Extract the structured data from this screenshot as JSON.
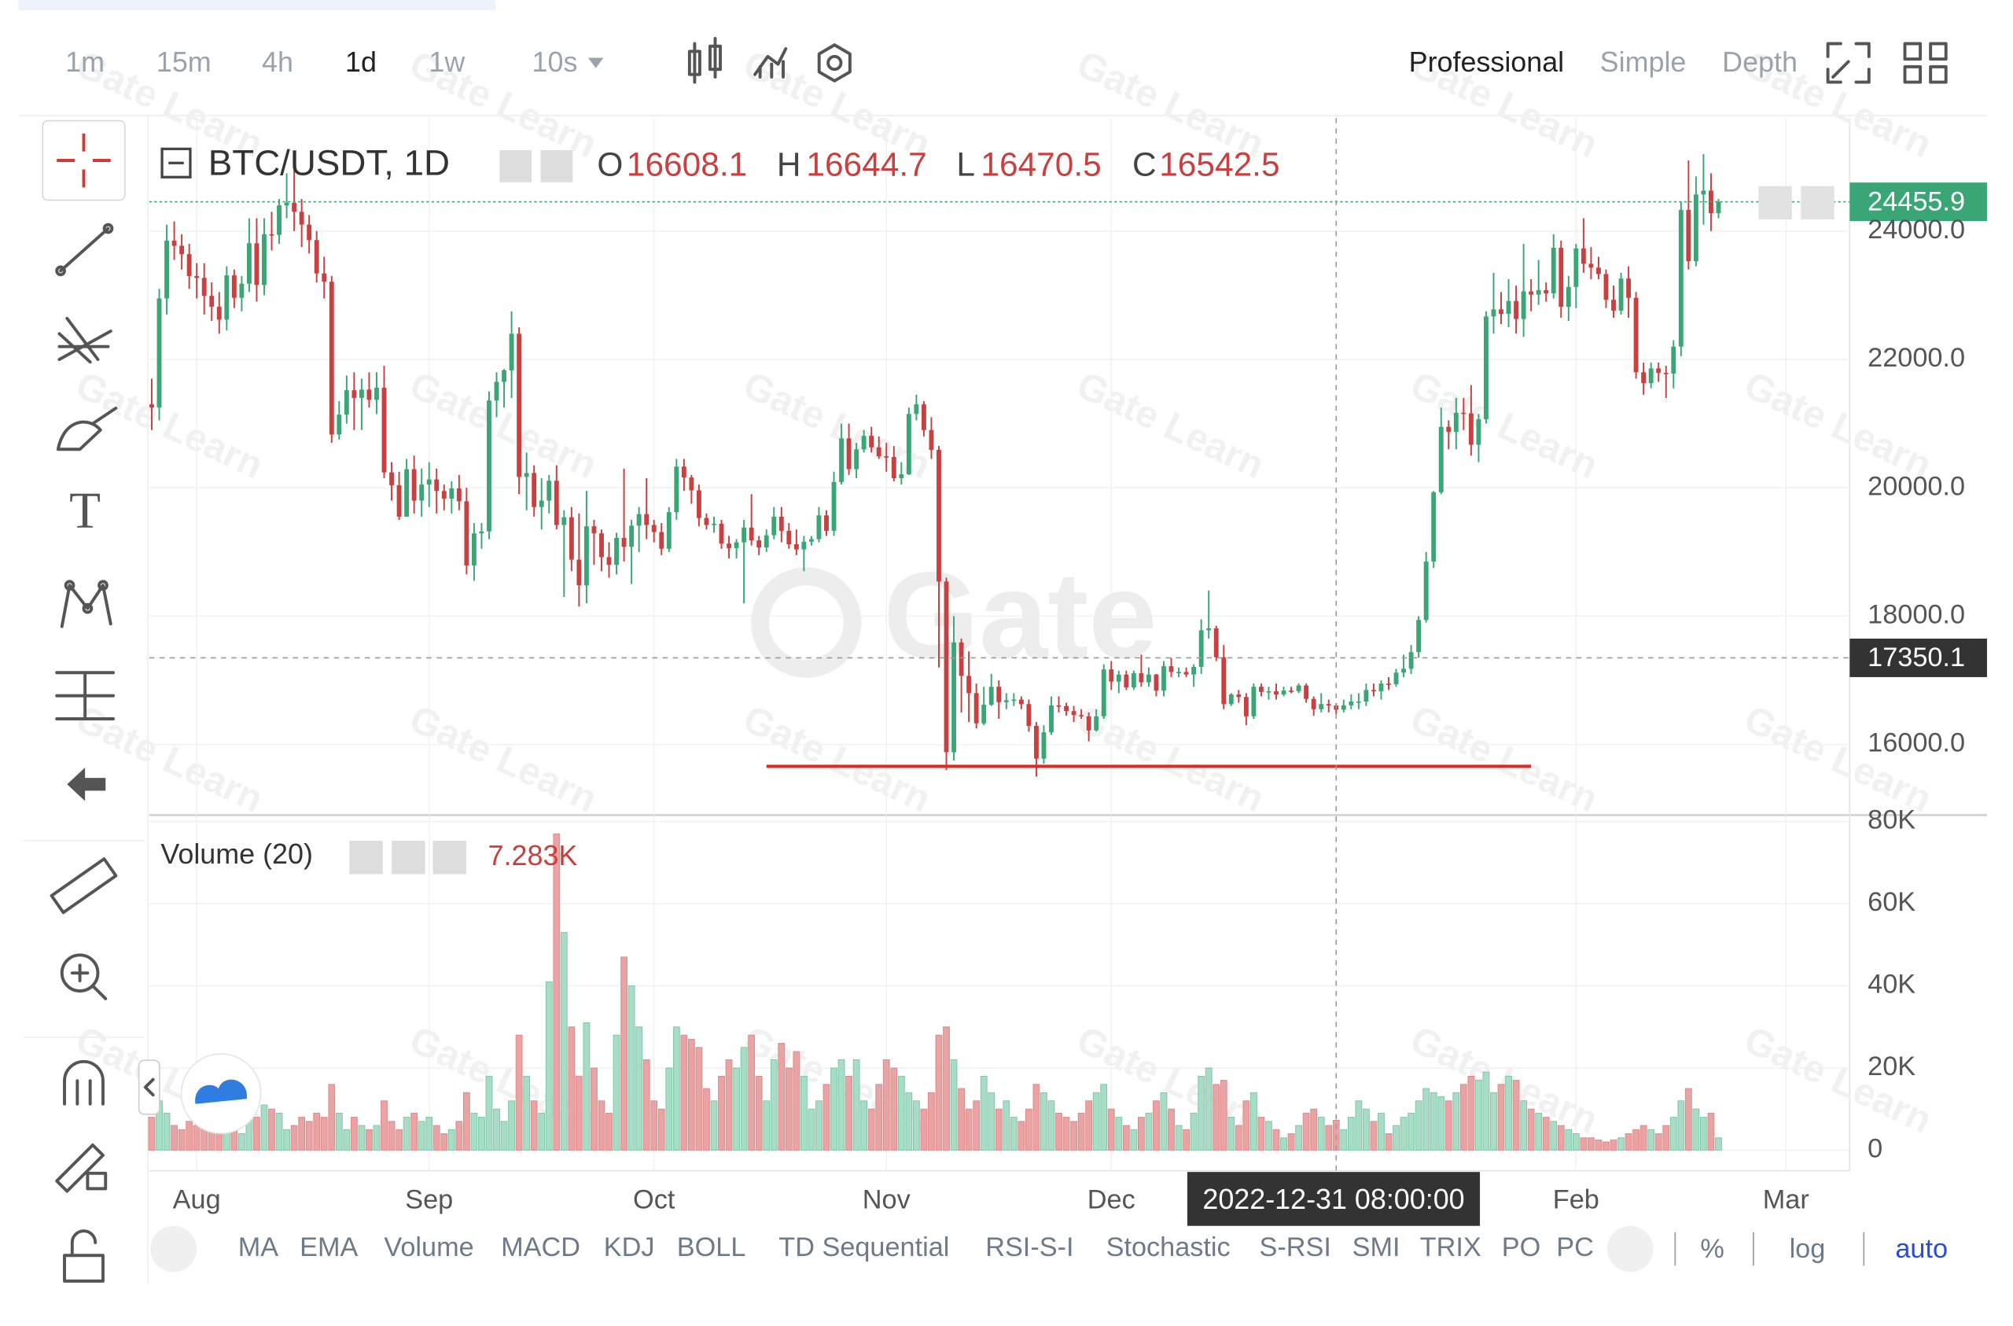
{
  "toolbar": {
    "intervals": [
      "1m",
      "15m",
      "4h",
      "1d",
      "1w",
      "10s"
    ],
    "views": [
      "Professional",
      "Simple",
      "Depth"
    ]
  },
  "indicators": [
    "MA",
    "EMA",
    "Volume",
    "MACD",
    "KDJ",
    "BOLL",
    "TD Sequential",
    "RSI-S-I",
    "Stochastic",
    "S-RSI",
    "SMI",
    "TRIX",
    "PO",
    "PC"
  ],
  "scale_options": [
    "%",
    "log",
    "auto"
  ],
  "watermark": {
    "logo": "Gate",
    "tile": "Gate Learn"
  },
  "chart_data": [
    {
      "type": "candlestick",
      "title": "BTC/USDT, 1D",
      "legend_labels": [
        "O",
        "H",
        "L",
        "C"
      ],
      "colors": {
        "up": "#3aa676",
        "down": "#c8403f"
      },
      "grid": true,
      "xlim": [
        -0.34,
        226.5
      ],
      "xticks": [
        {
          "value": 6,
          "label": "Aug"
        },
        {
          "value": 37,
          "label": "Sep"
        },
        {
          "value": 67,
          "label": "Oct"
        },
        {
          "value": 98,
          "label": "Nov"
        },
        {
          "value": 128,
          "label": "Dec"
        },
        {
          "value": 190,
          "label": "Feb"
        },
        {
          "value": 218,
          "label": "Mar"
        }
      ],
      "ylim": [
        14900,
        25760
      ],
      "yticks": [
        {
          "value": 16000,
          "label": "16000.0"
        },
        {
          "value": 18000,
          "label": "18000.0"
        },
        {
          "value": 20000,
          "label": "20000.0"
        },
        {
          "value": 22000,
          "label": "22000.0"
        },
        {
          "value": 24000,
          "label": "24000.0"
        }
      ],
      "crosshair": {
        "x": 158,
        "y": 17350.1,
        "x_label": "2022-12-31 08:00:00"
      },
      "support_line": {
        "value": 15660,
        "x": [
          82,
          184
        ],
        "color": "#e0291f"
      },
      "open": [
        21300,
        21250,
        22950,
        23850,
        23770,
        23640,
        23300,
        23270,
        22990,
        22820,
        22620,
        23310,
        22960,
        23180,
        23810,
        23160,
        23950,
        23940,
        24400,
        24440,
        24300,
        24100,
        23860,
        23340,
        23210,
        20830,
        21140,
        21520,
        21400,
        21530,
        21370,
        21560,
        20240,
        20040,
        19550,
        20290,
        19800,
        20050,
        20130,
        19950,
        19830,
        19990,
        19790,
        18790,
        19290,
        19320,
        21360,
        21650,
        21830,
        22400,
        20170,
        20230,
        19700,
        19800,
        20110,
        19420,
        19540,
        18880,
        18480,
        19400,
        19290,
        18920,
        18800,
        19220,
        19080,
        19410,
        19590,
        19420,
        19310,
        19050,
        19620,
        20330,
        20160,
        19960,
        19530,
        19420,
        19440,
        19130,
        19060,
        19150,
        19380,
        19180,
        19070,
        19260,
        19550,
        19330,
        19120,
        19040,
        19160,
        19200,
        19570,
        19330,
        20090,
        20770,
        20290,
        20600,
        20810,
        20630,
        20490,
        20480,
        20150,
        20210,
        21150,
        21300,
        20900,
        20590,
        18540,
        15880,
        17590,
        17070,
        16800,
        16330,
        16620,
        16900,
        16660,
        16690,
        16700,
        16630,
        16290,
        15780,
        16190,
        16610,
        16600,
        16520,
        16460,
        16440,
        16220,
        16440,
        17170,
        16980,
        17090,
        16890,
        17110,
        16970,
        17090,
        16840,
        17220,
        17130,
        17130,
        17090,
        17210,
        17780,
        17810,
        17360,
        16630,
        16780,
        16740,
        16440,
        16900,
        16820,
        16830,
        16780,
        16840,
        16830,
        16920,
        16710,
        16550,
        16630,
        16608.1,
        16542.5,
        16610,
        16670,
        16670,
        16850,
        16830,
        16950,
        16940,
        17120,
        17180,
        17440,
        17940,
        18850,
        19930,
        20950,
        20870,
        21170,
        21160,
        20670,
        21070,
        22670,
        22780,
        22710,
        22910,
        22630,
        23060,
        23010,
        23080,
        23030,
        23740,
        22820,
        23130,
        23730,
        23490,
        23430,
        23330,
        22930,
        22760,
        23260,
        22960,
        21800,
        21630,
        21860,
        21790,
        21780,
        22200,
        24330,
        23530,
        24570,
        24630,
        24280
      ],
      "high": [
        21700,
        23100,
        24100,
        24150,
        23950,
        23800,
        23500,
        23500,
        23200,
        23050,
        23450,
        23400,
        23300,
        24200,
        24200,
        24200,
        24300,
        24500,
        24900,
        25200,
        24500,
        24250,
        24000,
        23600,
        23300,
        21350,
        21750,
        21800,
        21700,
        21800,
        21800,
        21900,
        20400,
        20250,
        20450,
        20500,
        20300,
        20400,
        20300,
        20050,
        20100,
        20200,
        20000,
        19450,
        19450,
        21500,
        21800,
        21850,
        22750,
        22500,
        20550,
        20350,
        20150,
        20200,
        20350,
        19650,
        19700,
        19600,
        19950,
        19500,
        19350,
        19150,
        19300,
        20300,
        19500,
        19700,
        20150,
        19500,
        19450,
        19700,
        20450,
        20450,
        20200,
        20050,
        19600,
        19550,
        19500,
        19250,
        19200,
        19500,
        19900,
        19250,
        19350,
        19700,
        19700,
        19450,
        19350,
        19250,
        19250,
        19700,
        19650,
        20250,
        21000,
        21000,
        20700,
        20900,
        20950,
        20800,
        20700,
        20650,
        20400,
        21250,
        21450,
        21350,
        21100,
        20650,
        18600,
        18000,
        17650,
        17450,
        16950,
        16900,
        17100,
        17000,
        16800,
        16800,
        16750,
        16700,
        16350,
        16300,
        16750,
        16750,
        16650,
        16600,
        16550,
        16500,
        16550,
        17250,
        17300,
        17150,
        17150,
        17150,
        17400,
        17200,
        17100,
        17300,
        17350,
        17200,
        17200,
        17250,
        17950,
        18400,
        17850,
        17550,
        16800,
        16850,
        16800,
        16950,
        16950,
        16900,
        16950,
        16900,
        16900,
        16950,
        16950,
        16750,
        16800,
        16700,
        16644.7,
        16700,
        16780,
        16800,
        16950,
        16950,
        17000,
        17050,
        17180,
        17400,
        17550,
        18000,
        19000,
        19950,
        21250,
        21050,
        21400,
        21400,
        21600,
        21150,
        22750,
        23350,
        23050,
        23250,
        23150,
        23800,
        23250,
        23550,
        23200,
        23950,
        23850,
        23300,
        23800,
        24200,
        23750,
        23600,
        23400,
        23150,
        23350,
        23450,
        23050,
        21950,
        21950,
        21950,
        21900,
        22300,
        24450,
        25100,
        24850,
        25200,
        24900,
        24500
      ],
      "low": [
        20900,
        21050,
        22700,
        23550,
        23400,
        23100,
        22950,
        22700,
        22600,
        22400,
        22450,
        22800,
        22750,
        23050,
        22900,
        23000,
        23700,
        23800,
        24200,
        24000,
        23750,
        23650,
        23200,
        22950,
        20700,
        20750,
        21000,
        20900,
        20900,
        21250,
        21150,
        20150,
        19800,
        19500,
        19550,
        19600,
        19550,
        19700,
        19600,
        19650,
        19600,
        19650,
        18650,
        18550,
        19050,
        19200,
        21100,
        21250,
        21400,
        19900,
        19650,
        19550,
        19350,
        19600,
        19350,
        18300,
        18700,
        18150,
        18200,
        18800,
        18700,
        18600,
        18650,
        18850,
        18500,
        19000,
        19200,
        19150,
        18950,
        19000,
        19500,
        19950,
        19750,
        19400,
        19350,
        19300,
        19050,
        18900,
        18900,
        18200,
        19100,
        18950,
        19000,
        19200,
        19150,
        19050,
        18950,
        18700,
        19100,
        19150,
        19250,
        19250,
        20050,
        20200,
        20150,
        20550,
        20550,
        20450,
        20250,
        20100,
        20050,
        20200,
        21050,
        20800,
        20450,
        17200,
        15600,
        15750,
        16500,
        16350,
        16250,
        16300,
        16600,
        16400,
        16550,
        16600,
        16550,
        16200,
        15500,
        15700,
        16150,
        16500,
        16450,
        16350,
        16400,
        16050,
        16200,
        16400,
        16850,
        16800,
        16850,
        16850,
        16900,
        16900,
        16750,
        16750,
        17050,
        17050,
        17050,
        16900,
        17100,
        17650,
        17300,
        16550,
        16600,
        16650,
        16300,
        16400,
        16750,
        16700,
        16700,
        16750,
        16800,
        16800,
        16650,
        16450,
        16500,
        16500,
        16470.5,
        16500,
        16550,
        16550,
        16600,
        16750,
        16700,
        16850,
        16900,
        17050,
        17100,
        17350,
        17900,
        18750,
        19900,
        20600,
        20600,
        20900,
        20500,
        20400,
        21000,
        22400,
        22550,
        22500,
        22400,
        22350,
        22750,
        22850,
        22900,
        22950,
        22650,
        22600,
        22800,
        23350,
        23250,
        23250,
        22800,
        22650,
        22700,
        22650,
        21700,
        21450,
        21550,
        21650,
        21400,
        21550,
        22050,
        23400,
        23450,
        24100,
        24000,
        24200
      ],
      "close": [
        21250,
        22950,
        23850,
        23770,
        23640,
        23300,
        23270,
        22990,
        22820,
        22620,
        23310,
        22960,
        23180,
        23810,
        23160,
        23950,
        23940,
        24400,
        24440,
        24300,
        24100,
        23860,
        23340,
        23210,
        20830,
        21140,
        21520,
        21400,
        21530,
        21370,
        21560,
        20240,
        20040,
        19550,
        20290,
        19800,
        20050,
        20130,
        19950,
        19830,
        19990,
        19790,
        18790,
        19290,
        19320,
        21360,
        21650,
        21830,
        22400,
        20170,
        20230,
        19700,
        19800,
        20110,
        19420,
        19540,
        18880,
        18480,
        19400,
        19290,
        18920,
        18800,
        19220,
        19080,
        19410,
        19590,
        19420,
        19310,
        19050,
        19620,
        20330,
        20160,
        19960,
        19530,
        19420,
        19440,
        19130,
        19060,
        19150,
        19380,
        19180,
        19070,
        19260,
        19550,
        19330,
        19120,
        19040,
        19160,
        19200,
        19570,
        19330,
        20090,
        20770,
        20290,
        20600,
        20810,
        20630,
        20490,
        20480,
        20150,
        20210,
        21150,
        21300,
        20900,
        20590,
        18540,
        15880,
        17590,
        17070,
        16800,
        16330,
        16620,
        16900,
        16660,
        16690,
        16700,
        16630,
        16290,
        15780,
        16190,
        16610,
        16600,
        16520,
        16460,
        16440,
        16220,
        16440,
        17170,
        16980,
        17090,
        16890,
        17110,
        16970,
        17090,
        16840,
        17220,
        17130,
        17130,
        17090,
        17210,
        17780,
        17810,
        17360,
        16630,
        16780,
        16740,
        16440,
        16900,
        16820,
        16830,
        16780,
        16840,
        16830,
        16920,
        16710,
        16550,
        16630,
        16608.1,
        16542.5,
        16610,
        16670,
        16670,
        16850,
        16830,
        16950,
        16940,
        17120,
        17180,
        17440,
        17940,
        18850,
        19930,
        20950,
        20870,
        21170,
        21160,
        20670,
        21070,
        22670,
        22780,
        22710,
        22910,
        22630,
        23060,
        23010,
        23080,
        23030,
        23740,
        22820,
        23130,
        23730,
        23490,
        23430,
        23330,
        22930,
        22760,
        23260,
        22960,
        21800,
        21630,
        21860,
        21790,
        21780,
        22200,
        24330,
        23530,
        24570,
        24630,
        24280,
        24455.9
      ]
    },
    {
      "type": "bar",
      "title": "Volume (20)",
      "colors": {
        "up": "#a9dcc6",
        "down": "#eaa3a3"
      },
      "grid": true,
      "ylim": [
        -5000,
        81250
      ],
      "yticks": [
        0,
        {
          "value": 20000,
          "label": "20K"
        },
        {
          "value": 40000,
          "label": "40K"
        },
        {
          "value": 60000,
          "label": "60K"
        },
        {
          "value": 80000,
          "label": "80K"
        }
      ],
      "value_labels": {
        "158": "7.283K"
      },
      "values": [
        8000,
        12000,
        9000,
        6000,
        5000,
        7000,
        6000,
        9000,
        7000,
        6000,
        8000,
        5000,
        4000,
        9000,
        8000,
        11000,
        10000,
        9000,
        5000,
        6000,
        8000,
        7000,
        9000,
        8000,
        16000,
        9000,
        5000,
        8000,
        6000,
        5000,
        6000,
        12000,
        7000,
        5000,
        8000,
        9000,
        7000,
        8000,
        6000,
        4000,
        5000,
        7000,
        14000,
        9000,
        8000,
        18000,
        10000,
        7000,
        12000,
        28000,
        18000,
        12000,
        9000,
        41000,
        77000,
        53000,
        30000,
        18000,
        31000,
        20000,
        12000,
        9000,
        28000,
        47000,
        40000,
        30000,
        22000,
        12000,
        10000,
        20000,
        30000,
        28000,
        27000,
        25000,
        15000,
        12000,
        18000,
        22000,
        20000,
        25000,
        28000,
        18000,
        12000,
        22000,
        26000,
        20000,
        24000,
        18000,
        10000,
        12000,
        16000,
        20000,
        22000,
        18000,
        22000,
        12000,
        10000,
        16000,
        22000,
        20000,
        18000,
        14000,
        12000,
        10000,
        14000,
        28000,
        30000,
        22000,
        15000,
        10000,
        12000,
        18000,
        14000,
        10000,
        12000,
        8000,
        7000,
        10000,
        16000,
        14000,
        12000,
        9000,
        8000,
        7000,
        9000,
        12000,
        14000,
        16000,
        10000,
        8000,
        6000,
        5000,
        8000,
        9000,
        12000,
        14000,
        10000,
        6000,
        5000,
        9000,
        18000,
        20000,
        16000,
        17000,
        8000,
        6000,
        12000,
        14000,
        8000,
        7000,
        5000,
        3000,
        4000,
        6000,
        9000,
        10000,
        8000,
        6000,
        7283,
        5000,
        8000,
        12000,
        10000,
        7000,
        9000,
        4000,
        6000,
        8000,
        9000,
        12000,
        15000,
        14000,
        13000,
        12000,
        14000,
        16000,
        18000,
        17000,
        19000,
        14000,
        16000,
        18000,
        17000,
        12000,
        10000,
        9000,
        8000,
        7000,
        6000,
        5000,
        4000,
        3000,
        3000,
        2500,
        2000,
        2500,
        3000,
        4000,
        5000,
        6000,
        5000,
        4000,
        6000,
        8000,
        12000,
        15000,
        10000,
        8000,
        9000,
        3000
      ]
    }
  ]
}
